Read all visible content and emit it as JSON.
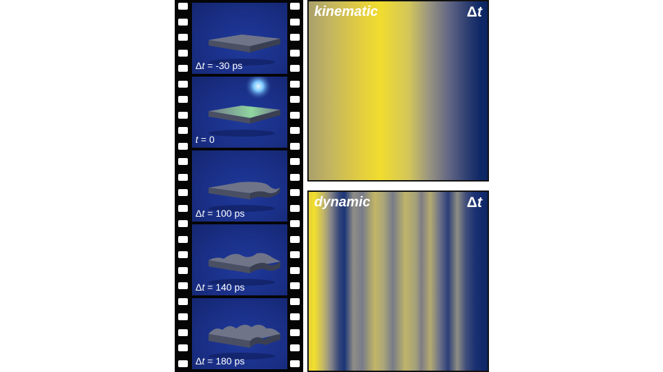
{
  "film_frames": [
    {
      "prefix": "Δ",
      "var": "t",
      "value": " = -30 ps"
    },
    {
      "prefix": "",
      "var": "t",
      "value": " = 0"
    },
    {
      "prefix": "Δ",
      "var": "t",
      "value": " = 100 ps"
    },
    {
      "prefix": "Δ",
      "var": "t",
      "value": " = 140 ps"
    },
    {
      "prefix": "Δ",
      "var": "t",
      "value": " = 180 ps"
    }
  ],
  "panels": {
    "kinematic": {
      "title": "kinematic",
      "delta_prefix": "Δ",
      "delta_var": "t"
    },
    "dynamic": {
      "title": "dynamic",
      "delta_prefix": "Δ",
      "delta_var": "t"
    }
  },
  "colors": {
    "frame_background": "#1a2f86",
    "film_strip": "#050505",
    "gradient_yellow": "#f1dd2f",
    "gradient_navy": "#0c2463"
  }
}
